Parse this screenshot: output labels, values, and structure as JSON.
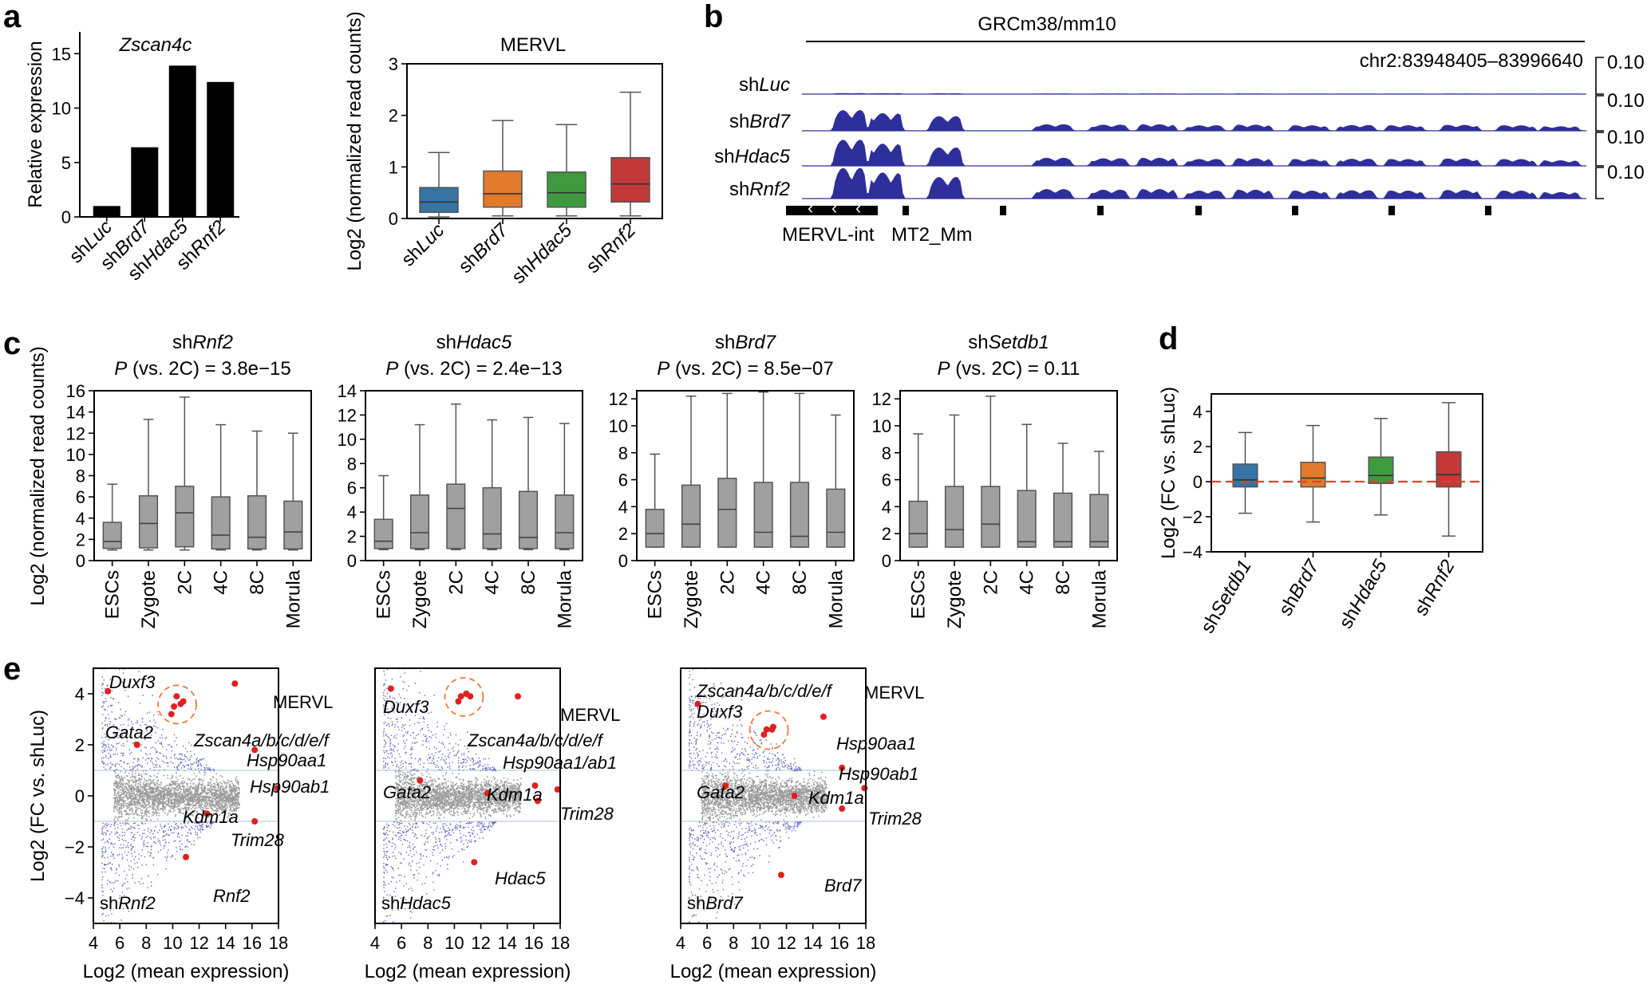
{
  "panel_labels": {
    "a": "a",
    "b": "b",
    "c": "c",
    "d": "d",
    "e": "e"
  },
  "chart_data": [
    {
      "id": "a_bar",
      "type": "bar",
      "title": "Zscan4c",
      "ylabel": "Relative expression",
      "categories": [
        "shLuc",
        "shBrd7",
        "shHdac5",
        "shRnf2"
      ],
      "category_parts": [
        [
          "sh",
          "Luc"
        ],
        [
          "sh",
          "Brd7"
        ],
        [
          "sh",
          "Hdac5"
        ],
        [
          "sh",
          "Rnf2"
        ]
      ],
      "values": [
        1.0,
        6.4,
        13.9,
        12.4
      ],
      "ylim": [
        0,
        17
      ],
      "yticks": [
        "0",
        "5",
        "10",
        "15"
      ],
      "color": "#000000"
    },
    {
      "id": "a_box",
      "type": "box",
      "title": "MERVL",
      "ylabel": "Log2 (normalized read counts)",
      "categories": [
        "shLuc",
        "shBrd7",
        "shHdac5",
        "shRnf2"
      ],
      "category_parts": [
        [
          "sh",
          "Luc"
        ],
        [
          "sh",
          "Brd7"
        ],
        [
          "sh",
          "Hdac5"
        ],
        [
          "sh",
          "Rnf2"
        ]
      ],
      "boxes": [
        {
          "min": 0.03,
          "q1": 0.12,
          "median": 0.32,
          "q3": 0.6,
          "max": 1.28
        },
        {
          "min": 0.05,
          "q1": 0.22,
          "median": 0.48,
          "q3": 0.92,
          "max": 1.9
        },
        {
          "min": 0.05,
          "q1": 0.22,
          "median": 0.5,
          "q3": 0.9,
          "max": 1.82
        },
        {
          "min": 0.05,
          "q1": 0.32,
          "median": 0.67,
          "q3": 1.18,
          "max": 2.45
        }
      ],
      "colors": [
        "#3574a5",
        "#e07b2e",
        "#3f9a3f",
        "#c3393a"
      ],
      "ylim": [
        0,
        3.0
      ],
      "yticks": [
        "0",
        "1",
        "2",
        "3"
      ]
    },
    {
      "id": "b_tracks",
      "type": "genome-tracks",
      "assembly": "GRCm38/mm10",
      "region": "chr2:83948405–83996640",
      "scale": "0.10",
      "tracks": [
        [
          "sh",
          "Luc"
        ],
        [
          "sh",
          "Brd7"
        ],
        [
          "sh",
          "Hdac5"
        ],
        [
          "sh",
          "Rnf2"
        ]
      ],
      "annotations": [
        "MERVL-int",
        "MT2_Mm"
      ],
      "color": "#2e2f9a"
    },
    {
      "id": "c_rnf2",
      "type": "box",
      "title": [
        "sh",
        "Rnf2"
      ],
      "subtitle": [
        "P",
        " (vs. 2C) = 3.8e−15"
      ],
      "ylabel": "Log2 (normalized read counts)",
      "categories": [
        "ESCs",
        "Zygote",
        "2C",
        "4C",
        "8C",
        "Morula"
      ],
      "boxes": [
        {
          "min": 1.0,
          "q1": 1.15,
          "median": 1.8,
          "q3": 3.6,
          "max": 7.2
        },
        {
          "min": 1.0,
          "q1": 1.2,
          "median": 3.5,
          "q3": 6.1,
          "max": 13.3
        },
        {
          "min": 1.0,
          "q1": 1.3,
          "median": 4.5,
          "q3": 7.0,
          "max": 15.4
        },
        {
          "min": 1.0,
          "q1": 1.1,
          "median": 2.4,
          "q3": 6.0,
          "max": 12.8
        },
        {
          "min": 1.0,
          "q1": 1.1,
          "median": 2.2,
          "q3": 6.1,
          "max": 12.2
        },
        {
          "min": 1.0,
          "q1": 1.1,
          "median": 2.7,
          "q3": 5.6,
          "max": 12.0
        }
      ],
      "ylim": [
        0,
        16
      ],
      "yticks": [
        "0",
        "2",
        "4",
        "6",
        "8",
        "10",
        "12",
        "14",
        "16"
      ]
    },
    {
      "id": "c_hdac5",
      "type": "box",
      "title": [
        "sh",
        "Hdac5"
      ],
      "subtitle": [
        "P",
        " (vs. 2C) = 2.4e−13"
      ],
      "categories": [
        "ESCs",
        "Zygote",
        "2C",
        "4C",
        "8C",
        "Morula"
      ],
      "boxes": [
        {
          "min": 0.9,
          "q1": 1.0,
          "median": 1.6,
          "q3": 3.4,
          "max": 7.0
        },
        {
          "min": 0.9,
          "q1": 1.0,
          "median": 2.3,
          "q3": 5.4,
          "max": 11.2
        },
        {
          "min": 0.9,
          "q1": 1.0,
          "median": 4.3,
          "q3": 6.3,
          "max": 12.9
        },
        {
          "min": 0.9,
          "q1": 1.0,
          "median": 2.2,
          "q3": 6.0,
          "max": 11.6
        },
        {
          "min": 0.9,
          "q1": 1.0,
          "median": 1.9,
          "q3": 5.7,
          "max": 11.8
        },
        {
          "min": 0.9,
          "q1": 1.0,
          "median": 2.3,
          "q3": 5.4,
          "max": 11.3
        }
      ],
      "ylim": [
        0,
        14
      ],
      "yticks": [
        "0",
        "2",
        "4",
        "6",
        "8",
        "10",
        "12",
        "14"
      ]
    },
    {
      "id": "c_brd7",
      "type": "box",
      "title": [
        "sh",
        "Brd7"
      ],
      "subtitle": [
        "P",
        " (vs. 2C) = 8.5e−07"
      ],
      "categories": [
        "ESCs",
        "Zygote",
        "2C",
        "4C",
        "8C",
        "Morula"
      ],
      "boxes": [
        {
          "min": 1.0,
          "q1": 1.0,
          "median": 2.0,
          "q3": 3.8,
          "max": 7.9
        },
        {
          "min": 1.0,
          "q1": 1.0,
          "median": 2.7,
          "q3": 5.6,
          "max": 12.2
        },
        {
          "min": 1.0,
          "q1": 1.0,
          "median": 3.8,
          "q3": 6.1,
          "max": 12.4
        },
        {
          "min": 1.0,
          "q1": 1.0,
          "median": 2.1,
          "q3": 5.8,
          "max": 12.5
        },
        {
          "min": 1.0,
          "q1": 1.0,
          "median": 1.8,
          "q3": 5.8,
          "max": 12.4
        },
        {
          "min": 1.0,
          "q1": 1.0,
          "median": 2.1,
          "q3": 5.3,
          "max": 10.8
        }
      ],
      "ylim": [
        0,
        12.6
      ],
      "yticks": [
        "0",
        "2",
        "4",
        "6",
        "8",
        "10",
        "12"
      ]
    },
    {
      "id": "c_setdb1",
      "type": "box",
      "title": [
        "sh",
        "Setdb1"
      ],
      "subtitle": [
        "P",
        " (vs. 2C) = 0.11"
      ],
      "categories": [
        "ESCs",
        "Zygote",
        "2C",
        "4C",
        "8C",
        "Morula"
      ],
      "boxes": [
        {
          "min": 1.0,
          "q1": 1.0,
          "median": 2.0,
          "q3": 4.4,
          "max": 9.4
        },
        {
          "min": 1.0,
          "q1": 1.0,
          "median": 2.3,
          "q3": 5.5,
          "max": 10.8
        },
        {
          "min": 1.0,
          "q1": 1.0,
          "median": 2.7,
          "q3": 5.5,
          "max": 12.2
        },
        {
          "min": 1.0,
          "q1": 1.0,
          "median": 1.4,
          "q3": 5.2,
          "max": 10.1
        },
        {
          "min": 1.0,
          "q1": 1.0,
          "median": 1.4,
          "q3": 5.0,
          "max": 8.7
        },
        {
          "min": 1.0,
          "q1": 1.0,
          "median": 1.4,
          "q3": 4.9,
          "max": 8.1
        }
      ],
      "ylim": [
        0,
        12.6
      ],
      "yticks": [
        "0",
        "2",
        "4",
        "6",
        "8",
        "10",
        "12"
      ]
    },
    {
      "id": "d_box",
      "type": "box",
      "ylabel": "Log2 (FC vs. shLuc)",
      "categories": [
        "shSetdb1",
        "shBrd7",
        "shHdac5",
        "shRnf2"
      ],
      "category_parts": [
        [
          "sh",
          "Setdb1"
        ],
        [
          "sh",
          "Brd7"
        ],
        [
          "sh",
          "Hdac5"
        ],
        [
          "sh",
          "Rnf2"
        ]
      ],
      "boxes": [
        {
          "min": -1.8,
          "q1": -0.3,
          "median": 0.1,
          "q3": 1.0,
          "max": 2.8
        },
        {
          "min": -2.3,
          "q1": -0.3,
          "median": 0.2,
          "q3": 1.1,
          "max": 3.2
        },
        {
          "min": -1.9,
          "q1": -0.1,
          "median": 0.35,
          "q3": 1.4,
          "max": 3.6
        },
        {
          "min": -3.1,
          "q1": -0.3,
          "median": 0.4,
          "q3": 1.7,
          "max": 4.5
        }
      ],
      "colors": [
        "#3574a5",
        "#e07b2e",
        "#3f9a3f",
        "#c3393a"
      ],
      "reference_line": 0,
      "ylim": [
        -4,
        5
      ],
      "yticks": [
        "−4",
        "−2",
        "0",
        "2",
        "4"
      ]
    },
    {
      "id": "e_rnf2",
      "type": "scatter",
      "label": [
        "sh",
        "Rnf2"
      ],
      "xlabel": "Log2 (mean expression)",
      "ylabel": "Log2 (FC vs. shLuc)",
      "xlim": [
        4,
        18
      ],
      "ylim": [
        -5,
        5
      ],
      "xticks": [
        "4",
        "6",
        "8",
        "10",
        "12",
        "14",
        "16",
        "18"
      ],
      "yticks": [
        "−4",
        "−2",
        "0",
        "2",
        "4"
      ],
      "highlights": [
        {
          "name": "Duxf3",
          "x": 5.1,
          "y": 4.1
        },
        {
          "name": "MERVL",
          "x": 14.7,
          "y": 4.4
        },
        {
          "name": "Zscan4a/b/c/d/e/f",
          "x": 10.1,
          "y": 3.5
        },
        {
          "name": "Zscan4a/b/c/d/e/f",
          "x": 10.3,
          "y": 3.9
        },
        {
          "name": "Zscan4a/b/c/d/e/f",
          "x": 9.9,
          "y": 3.2
        },
        {
          "name": "Zscan4a/b/c/d/e/f",
          "x": 10.8,
          "y": 3.7
        },
        {
          "name": "Zscan4a/b/c/d/e/f",
          "x": 10.6,
          "y": 3.6
        },
        {
          "name": "Gata2",
          "x": 7.3,
          "y": 2.0
        },
        {
          "name": "Hsp90aa1",
          "x": 16.2,
          "y": 1.8
        },
        {
          "name": "Hsp90ab1",
          "x": 17.9,
          "y": 0.3
        },
        {
          "name": "Kdm1a",
          "x": 12.6,
          "y": -0.7
        },
        {
          "name": "Trim28",
          "x": 16.2,
          "y": -1.0
        },
        {
          "name": "Rnf2",
          "x": 11.0,
          "y": -2.4
        }
      ],
      "labels": {
        "duxf3": "Duxf3",
        "gata2": "Gata2",
        "mervl": "MERVL",
        "zscan": "Zscan4a/b/c/d/e/f",
        "hsp90aa1": "Hsp90aa1",
        "hsp90ab1": "Hsp90ab1",
        "kdm1a": "Kdm1a",
        "trim28": "Trim28",
        "target": "Rnf2"
      }
    },
    {
      "id": "e_hdac5",
      "type": "scatter",
      "label": [
        "sh",
        "Hdac5"
      ],
      "xlabel": "Log2 (mean expression)",
      "xlim": [
        4,
        18
      ],
      "ylim": [
        -5,
        5
      ],
      "xticks": [
        "4",
        "6",
        "8",
        "10",
        "12",
        "14",
        "16",
        "18"
      ],
      "highlights": [
        {
          "name": "Duxf3",
          "x": 5.2,
          "y": 4.2
        },
        {
          "name": "MERVL",
          "x": 14.8,
          "y": 3.9
        },
        {
          "name": "Zscan4a/b/c/d/e/f",
          "x": 10.3,
          "y": 3.7
        },
        {
          "name": "Zscan4a/b/c/d/e/f",
          "x": 10.5,
          "y": 3.9
        },
        {
          "name": "Zscan4a/b/c/d/e/f",
          "x": 10.9,
          "y": 4.0
        },
        {
          "name": "Zscan4a/b/c/d/e/f",
          "x": 11.2,
          "y": 3.9
        },
        {
          "name": "Gata2",
          "x": 7.4,
          "y": 0.6
        },
        {
          "name": "Hsp90aa1/ab1",
          "x": 16.1,
          "y": 0.4
        },
        {
          "name": "Hsp90aa1/ab1",
          "x": 17.8,
          "y": 0.25
        },
        {
          "name": "Kdm1a",
          "x": 12.5,
          "y": 0.1
        },
        {
          "name": "Trim28",
          "x": 16.3,
          "y": -0.2
        },
        {
          "name": "Hdac5",
          "x": 11.5,
          "y": -2.6
        }
      ],
      "labels": {
        "duxf3": "Duxf3",
        "gata2": "Gata2",
        "mervl": "MERVL",
        "zscan": "Zscan4a/b/c/d/e/f",
        "hsp90": "Hsp90aa1/ab1",
        "kdm1a": "Kdm1a",
        "trim28": "Trim28",
        "target": "Hdac5"
      }
    },
    {
      "id": "e_brd7",
      "type": "scatter",
      "label": [
        "sh",
        "Brd7"
      ],
      "xlabel": "Log2 (mean expression)",
      "xlim": [
        4,
        18
      ],
      "ylim": [
        -5,
        5
      ],
      "xticks": [
        "4",
        "6",
        "8",
        "10",
        "12",
        "14",
        "16",
        "18"
      ],
      "highlights": [
        {
          "name": "Duxf3",
          "x": 5.3,
          "y": 3.6
        },
        {
          "name": "MERVL",
          "x": 14.8,
          "y": 3.1
        },
        {
          "name": "Zscan4a/b/c/d/e/f",
          "x": 10.3,
          "y": 2.4
        },
        {
          "name": "Zscan4a/b/c/d/e/f",
          "x": 10.5,
          "y": 2.6
        },
        {
          "name": "Zscan4a/b/c/d/e/f",
          "x": 10.9,
          "y": 2.6
        },
        {
          "name": "Zscan4a/b/c/d/e/f",
          "x": 11.0,
          "y": 2.7
        },
        {
          "name": "Gata2",
          "x": 7.4,
          "y": 0.4
        },
        {
          "name": "Hsp90aa1",
          "x": 16.2,
          "y": 1.1
        },
        {
          "name": "Hsp90ab1",
          "x": 17.9,
          "y": 0.3
        },
        {
          "name": "Kdm1a",
          "x": 12.6,
          "y": 0.0
        },
        {
          "name": "Trim28",
          "x": 16.2,
          "y": -0.5
        },
        {
          "name": "Brd7",
          "x": 11.6,
          "y": -3.1
        }
      ],
      "labels": {
        "duxf3": "Duxf3",
        "gata2": "Gata2",
        "mervl": "MERVL",
        "zscan": "Zscan4a/b/c/d/e/f",
        "hsp90aa1": "Hsp90aa1",
        "hsp90ab1": "Hsp90ab1",
        "kdm1a": "Kdm1a",
        "trim28": "Trim28",
        "target": "Brd7"
      }
    }
  ]
}
